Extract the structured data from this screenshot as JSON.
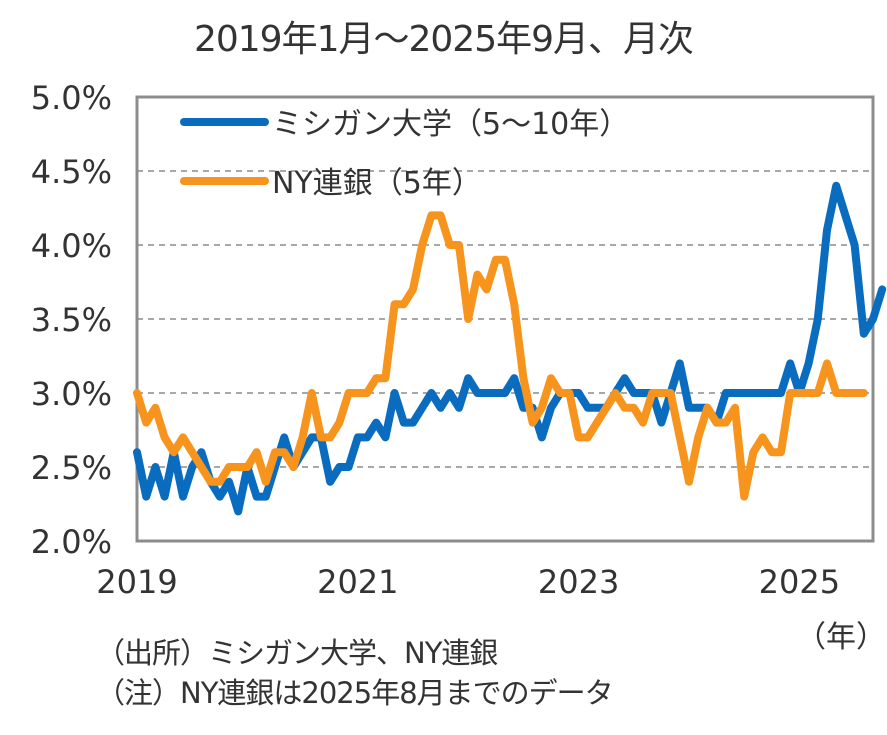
{
  "title": "2019年1月～2025年9月、月次",
  "chart_data": {
    "type": "line",
    "title": "2019年1月～2025年9月、月次",
    "xlabel": "（年）",
    "ylabel": "",
    "ylim": [
      2.0,
      5.0
    ],
    "y_ticks": [
      "5.0%",
      "4.5%",
      "4.0%",
      "3.5%",
      "3.0%",
      "2.5%",
      "2.0%"
    ],
    "y_tick_values": [
      5.0,
      4.5,
      4.0,
      3.5,
      3.0,
      2.5,
      2.0
    ],
    "x_ticks": [
      "2019",
      "2021",
      "2023",
      "2025"
    ],
    "x_tick_month_index": [
      0,
      24,
      48,
      72
    ],
    "x_start": "2019-01",
    "grid": true,
    "legend_position": "top-left",
    "series": [
      {
        "name": "ミシガン大学（5～10年）",
        "color": "#0a6cbf",
        "values": [
          2.6,
          2.3,
          2.5,
          2.3,
          2.6,
          2.3,
          2.5,
          2.6,
          2.4,
          2.3,
          2.4,
          2.2,
          2.5,
          2.3,
          2.3,
          2.5,
          2.7,
          2.5,
          2.6,
          2.7,
          2.7,
          2.4,
          2.5,
          2.5,
          2.7,
          2.7,
          2.8,
          2.7,
          3.0,
          2.8,
          2.8,
          2.9,
          3.0,
          2.9,
          3.0,
          2.9,
          3.1,
          3.0,
          3.0,
          3.0,
          3.0,
          3.1,
          2.9,
          2.9,
          2.7,
          2.9,
          3.0,
          3.0,
          3.0,
          2.9,
          2.9,
          2.9,
          3.0,
          3.1,
          3.0,
          3.0,
          3.0,
          2.8,
          3.0,
          3.2,
          2.9,
          2.9,
          2.9,
          2.8,
          3.0,
          3.0,
          3.0,
          3.0,
          3.0,
          3.0,
          3.0,
          3.2,
          3.0,
          3.2,
          3.5,
          4.1,
          4.4,
          4.2,
          4.0,
          3.4,
          3.5,
          3.7
        ]
      },
      {
        "name": "NY連銀（5年）",
        "color": "#f7941d",
        "values": [
          3.0,
          2.8,
          2.9,
          2.7,
          2.6,
          2.7,
          2.6,
          2.5,
          2.4,
          2.4,
          2.5,
          2.5,
          2.5,
          2.6,
          2.4,
          2.6,
          2.6,
          2.5,
          2.7,
          3.0,
          2.7,
          2.7,
          2.8,
          3.0,
          3.0,
          3.0,
          3.1,
          3.1,
          3.6,
          3.6,
          3.7,
          4.0,
          4.2,
          4.2,
          4.0,
          4.0,
          3.5,
          3.8,
          3.7,
          3.9,
          3.9,
          3.6,
          3.1,
          2.8,
          2.9,
          3.1,
          3.0,
          3.0,
          2.7,
          2.7,
          2.8,
          2.9,
          3.0,
          2.9,
          2.9,
          2.8,
          3.0,
          3.0,
          3.0,
          2.7,
          2.4,
          2.7,
          2.9,
          2.8,
          2.8,
          2.9,
          2.3,
          2.6,
          2.7,
          2.6,
          2.6,
          3.0,
          3.0,
          3.0,
          3.0,
          3.2,
          3.0,
          3.0,
          3.0,
          3.0
        ]
      }
    ]
  },
  "notes": {
    "source": "（出所）ミシガン大学、NY連銀",
    "note": "（注）NY連銀は2025年8月までのデータ",
    "unit": "（年）"
  }
}
